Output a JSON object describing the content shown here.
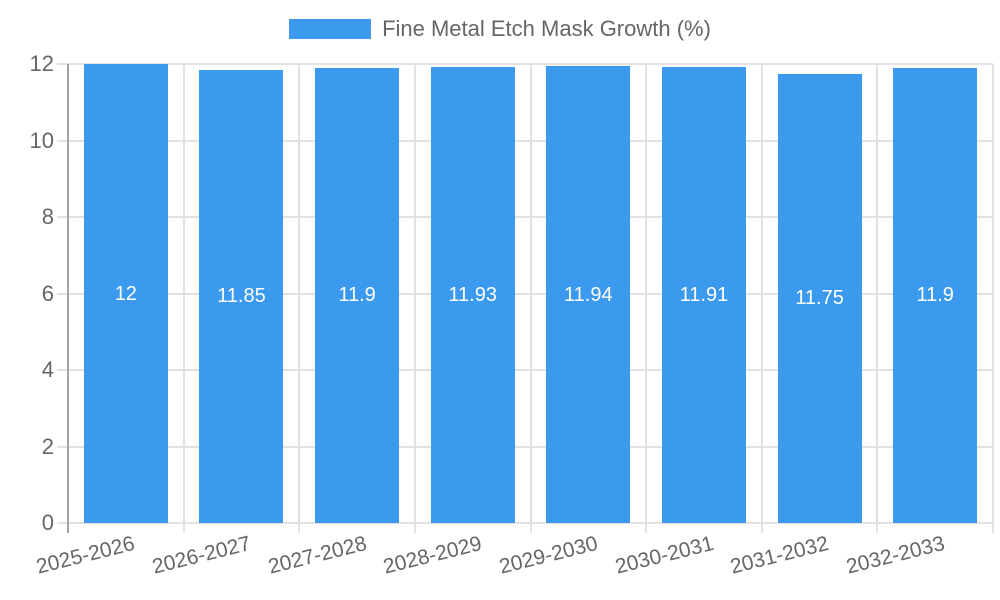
{
  "legend": {
    "position": "top",
    "items": [
      {
        "label": "Fine Metal Etch Mask Growth (%)",
        "swatch_color": "#3b99ee"
      }
    ]
  },
  "chart_data": {
    "type": "bar",
    "title": "",
    "xlabel": "",
    "ylabel": "",
    "categories": [
      "2025-2026",
      "2026-2027",
      "2027-2028",
      "2028-2029",
      "2029-2030",
      "2030-2031",
      "2031-2032",
      "2032-2033"
    ],
    "series": [
      {
        "name": "Fine Metal Etch Mask Growth (%)",
        "values": [
          12,
          11.85,
          11.9,
          11.93,
          11.94,
          11.91,
          11.75,
          11.9
        ]
      }
    ],
    "data_labels": [
      "12",
      "11.85",
      "11.9",
      "11.93",
      "11.94",
      "11.91",
      "11.75",
      "11.9"
    ],
    "ylim": [
      0,
      12
    ],
    "yticks": [
      0,
      2,
      4,
      6,
      8,
      10,
      12
    ],
    "grid": true,
    "legend_position": "top",
    "bar_color": "#3b99ee",
    "data_label_color": "#ffffff"
  },
  "colors": {
    "background": "#ffffff",
    "bar": "#3b99ee",
    "grid": "#e2e2e2",
    "axis_line": "#a3a3a3",
    "text": "#666666",
    "value_label": "#ffffff"
  }
}
